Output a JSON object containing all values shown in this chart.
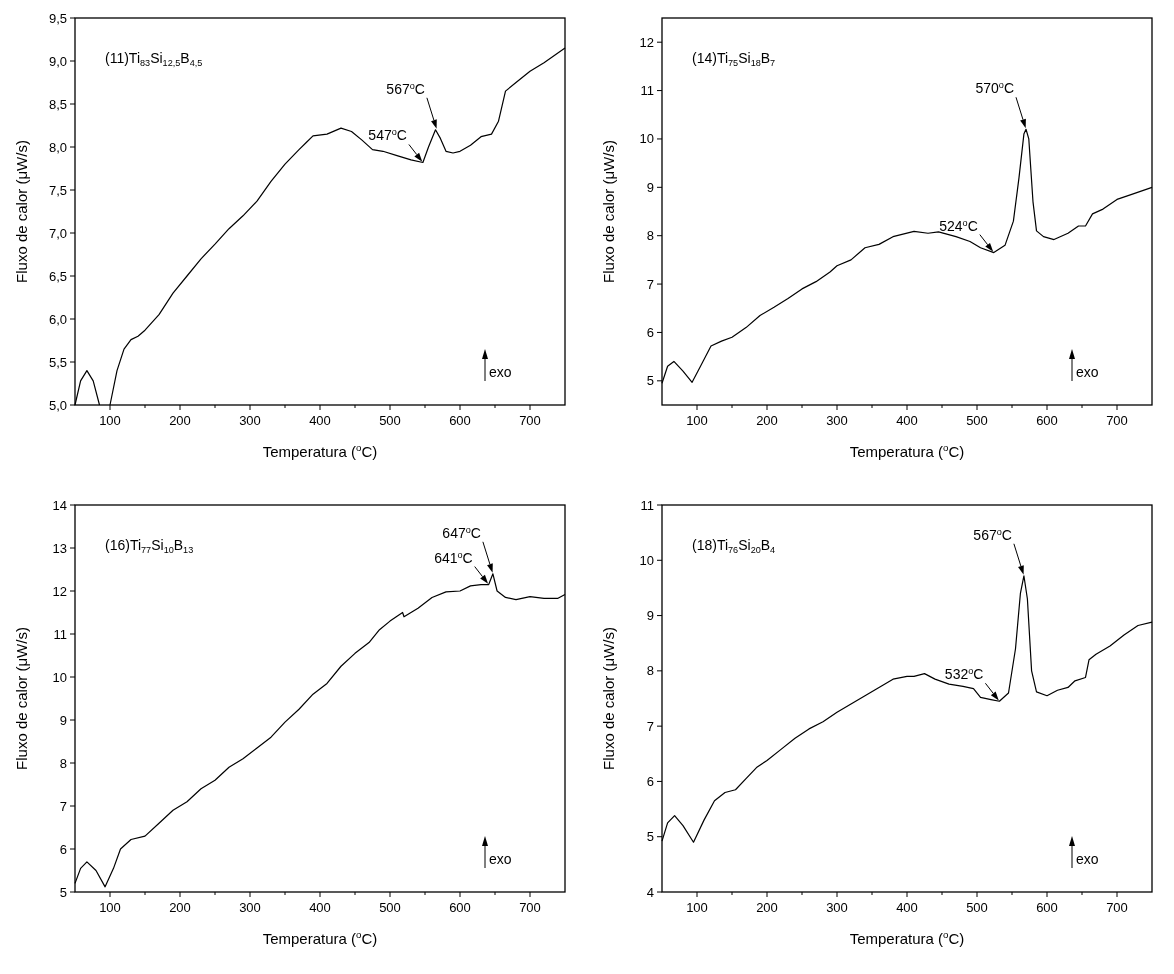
{
  "chart_data": [
    {
      "type": "line",
      "title": "(11)Ti$_{83}$Si$_{12,5}$B$_{4,5}$",
      "xlabel": "Temperatura ($^{o}$C)",
      "ylabel": "Fluxo de calor (μW/s)",
      "xlim": [
        50,
        750
      ],
      "ylim": [
        5.0,
        9.5
      ],
      "xticks": [
        100,
        {
          "value": 150,
          "label": null
        },
        200,
        {
          "value": 250,
          "label": null
        },
        300,
        {
          "value": 350,
          "label": null
        },
        400,
        {
          "value": 450,
          "label": null
        },
        500,
        {
          "value": 550,
          "label": null
        },
        600,
        {
          "value": 650,
          "label": null
        },
        700
      ],
      "yticks": [
        {
          "value": 5.0,
          "label": "5,0"
        },
        {
          "value": 5.5,
          "label": "5,5"
        },
        {
          "value": 6.0,
          "label": "6,0"
        },
        {
          "value": 6.5,
          "label": "6,5"
        },
        {
          "value": 7.0,
          "label": "7,0"
        },
        {
          "value": 7.5,
          "label": "7,5"
        },
        {
          "value": 8.0,
          "label": "8,0"
        },
        {
          "value": 8.5,
          "label": "8,5"
        },
        {
          "value": 9.0,
          "label": "9,0"
        },
        {
          "value": 9.5,
          "label": "9,5"
        }
      ],
      "annotations": [
        {
          "text": "567$^{o}$C",
          "x": 567,
          "y": 8.2
        },
        {
          "text": "547$^{o}$C",
          "x": 547,
          "y": 7.82
        },
        "exo"
      ],
      "series": [
        {
          "color": "#000000",
          "x": [
            50,
            58,
            67,
            76,
            85,
            92,
            100,
            110,
            120,
            130,
            140,
            150,
            170,
            190,
            210,
            230,
            250,
            270,
            290,
            310,
            330,
            350,
            370,
            380,
            390,
            410,
            430,
            445,
            460,
            475,
            490,
            510,
            530,
            547,
            555,
            565,
            572,
            580,
            590,
            600,
            615,
            630,
            645,
            655,
            665,
            680,
            700,
            720,
            750
          ],
          "values": [
            5.0,
            5.28,
            5.4,
            5.28,
            5.0,
            null,
            5.0,
            5.4,
            5.65,
            5.76,
            5.8,
            5.87,
            6.05,
            6.3,
            6.5,
            6.7,
            6.87,
            7.05,
            7.2,
            7.37,
            7.6,
            7.8,
            7.97,
            8.05,
            8.13,
            8.15,
            8.22,
            8.18,
            8.08,
            7.97,
            7.95,
            7.9,
            7.85,
            7.82,
            8.0,
            8.2,
            8.1,
            7.95,
            7.93,
            7.95,
            8.02,
            8.12,
            8.15,
            8.3,
            8.65,
            8.75,
            8.88,
            8.98,
            9.15
          ]
        }
      ]
    },
    {
      "type": "line",
      "title": "(14)Ti$_{75}$Si$_{18}$B$_{7}$",
      "xlabel": "Temperatura ($^{o}$C)",
      "ylabel": "Fluxo de calor (μW/s)",
      "xlim": [
        50,
        750
      ],
      "ylim": [
        4.5,
        12.5
      ],
      "xticks": [
        100,
        {
          "value": 150,
          "label": null
        },
        200,
        {
          "value": 250,
          "label": null
        },
        300,
        {
          "value": 350,
          "label": null
        },
        400,
        {
          "value": 450,
          "label": null
        },
        500,
        {
          "value": 550,
          "label": null
        },
        600,
        {
          "value": 650,
          "label": null
        },
        700
      ],
      "yticks": [
        5,
        6,
        7,
        8,
        9,
        10,
        11,
        12
      ],
      "annotations": [
        {
          "text": "570$^{o}$C",
          "x": 570,
          "y": 10.2
        },
        {
          "text": "524$^{o}$C",
          "x": 524,
          "y": 7.65
        },
        "exo"
      ],
      "series": [
        {
          "color": "#000000",
          "x": [
            50,
            58,
            67,
            80,
            93,
            105,
            120,
            135,
            150,
            170,
            190,
            210,
            230,
            250,
            270,
            290,
            300,
            320,
            340,
            360,
            380,
            410,
            430,
            445,
            470,
            490,
            505,
            524,
            540,
            552,
            560,
            567,
            570,
            574,
            580,
            585,
            595,
            610,
            630,
            645,
            655,
            665,
            680,
            700,
            720,
            750
          ],
          "values": [
            4.95,
            5.3,
            5.4,
            5.2,
            4.97,
            5.3,
            5.72,
            5.82,
            5.9,
            6.1,
            6.35,
            6.52,
            6.7,
            6.9,
            7.05,
            7.25,
            7.38,
            7.5,
            7.75,
            7.82,
            7.98,
            8.09,
            8.05,
            8.08,
            7.98,
            7.88,
            7.75,
            7.65,
            7.8,
            8.3,
            9.2,
            10.1,
            10.2,
            10.0,
            8.7,
            8.1,
            7.98,
            7.92,
            8.05,
            8.2,
            8.2,
            8.45,
            8.55,
            8.75,
            8.85,
            9.0
          ]
        }
      ]
    },
    {
      "type": "line",
      "title": "(16)Ti$_{77}$Si$_{10}$B$_{13}$",
      "xlabel": "Temperatura ($^{o}$C)",
      "ylabel": "Fluxo de calor (μW/s)",
      "xlim": [
        50,
        750
      ],
      "ylim": [
        5,
        14
      ],
      "xticks": [
        100,
        {
          "value": 150,
          "label": null
        },
        200,
        {
          "value": 250,
          "label": null
        },
        300,
        {
          "value": 350,
          "label": null
        },
        400,
        {
          "value": 450,
          "label": null
        },
        500,
        {
          "value": 550,
          "label": null
        },
        600,
        {
          "value": 650,
          "label": null
        },
        700
      ],
      "yticks": [
        5,
        6,
        7,
        8,
        9,
        10,
        11,
        12,
        13,
        14
      ],
      "annotations": [
        {
          "text": "647$^{o}$C",
          "x": 647,
          "y": 12.4
        },
        {
          "text": "641$^{o}$C",
          "x": 641,
          "y": 12.15
        },
        "exo"
      ],
      "series": [
        {
          "color": "#000000",
          "x": [
            50,
            58,
            67,
            80,
            93,
            105,
            115,
            130,
            150,
            170,
            190,
            210,
            230,
            250,
            270,
            290,
            310,
            330,
            350,
            370,
            390,
            410,
            430,
            450,
            470,
            485,
            500,
            518,
            520,
            540,
            560,
            580,
            600,
            615,
            630,
            641,
            647,
            653,
            665,
            680,
            700,
            720,
            740,
            750
          ],
          "values": [
            5.2,
            5.55,
            5.7,
            5.5,
            5.12,
            5.55,
            6.0,
            6.22,
            6.3,
            6.6,
            6.9,
            7.1,
            7.4,
            7.6,
            7.9,
            8.1,
            8.35,
            8.6,
            8.95,
            9.25,
            9.6,
            9.85,
            10.25,
            10.55,
            10.8,
            11.1,
            11.3,
            11.5,
            11.4,
            11.6,
            11.85,
            11.98,
            12.0,
            12.12,
            12.15,
            12.15,
            12.4,
            12.0,
            11.85,
            11.8,
            11.87,
            11.83,
            11.83,
            11.92
          ]
        }
      ]
    },
    {
      "type": "line",
      "title": "(18)Ti$_{76}$Si$_{20}$B$_{4}$",
      "xlabel": "Temperatura ($^{o}$C)",
      "ylabel": "Fluxo de calor (μW/s)",
      "xlim": [
        50,
        750
      ],
      "ylim": [
        4,
        11
      ],
      "xticks": [
        100,
        {
          "value": 150,
          "label": null
        },
        200,
        {
          "value": 250,
          "label": null
        },
        300,
        {
          "value": 350,
          "label": null
        },
        400,
        {
          "value": 450,
          "label": null
        },
        500,
        {
          "value": 550,
          "label": null
        },
        600,
        {
          "value": 650,
          "label": null
        },
        700
      ],
      "yticks": [
        4,
        5,
        6,
        7,
        8,
        9,
        10,
        11
      ],
      "annotations": [
        {
          "text": "567$^{o}$C",
          "x": 567,
          "y": 9.72
        },
        {
          "text": "532$^{o}$C",
          "x": 532,
          "y": 7.45
        },
        "exo"
      ],
      "series": [
        {
          "color": "#000000",
          "x": [
            50,
            58,
            68,
            80,
            95,
            110,
            125,
            140,
            155,
            170,
            185,
            200,
            220,
            240,
            260,
            280,
            300,
            320,
            340,
            360,
            380,
            400,
            410,
            425,
            440,
            460,
            480,
            495,
            505,
            520,
            532,
            545,
            555,
            562,
            567,
            572,
            578,
            585,
            600,
            615,
            630,
            640,
            655,
            660,
            670,
            690,
            710,
            730,
            750
          ],
          "values": [
            4.92,
            5.25,
            5.38,
            5.2,
            4.9,
            5.3,
            5.65,
            5.8,
            5.85,
            6.05,
            6.25,
            6.38,
            6.58,
            6.78,
            6.95,
            7.08,
            7.25,
            7.4,
            7.55,
            7.7,
            7.85,
            7.9,
            7.9,
            7.95,
            7.85,
            7.76,
            7.72,
            7.68,
            7.52,
            7.48,
            7.45,
            7.6,
            8.4,
            9.4,
            9.72,
            9.3,
            8.0,
            7.62,
            7.55,
            7.65,
            7.7,
            7.82,
            7.88,
            8.2,
            8.3,
            8.45,
            8.65,
            8.82,
            8.88
          ]
        }
      ]
    }
  ]
}
